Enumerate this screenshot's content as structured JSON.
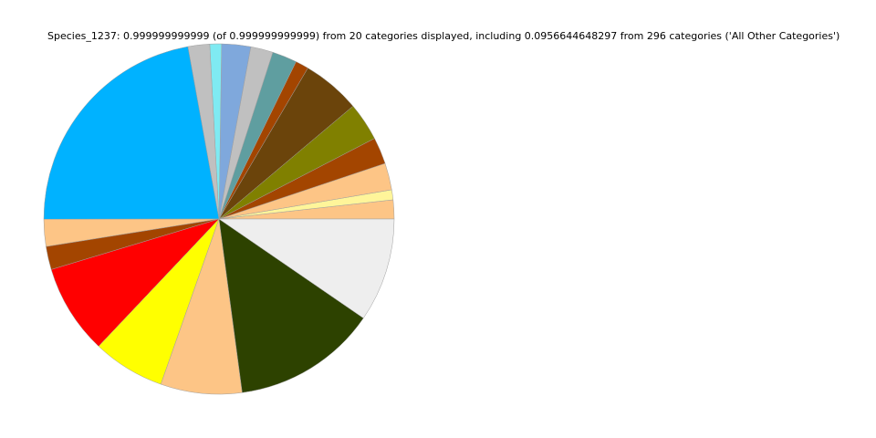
{
  "chart_data": {
    "type": "pie",
    "title": "Species_1237: 0.999999999999 (of 0.999999999999) from 20 categories displayed, including 0.0956644648297 from 296 categories ('All Other Categories')",
    "start_angle_deg": 0,
    "direction": "counterclockwise",
    "legend": "none",
    "slices": [
      {
        "value": 0.0175,
        "color": "#fdc586"
      },
      {
        "value": 0.0092,
        "color": "#fff59a"
      },
      {
        "value": 0.0247,
        "color": "#fdc586"
      },
      {
        "value": 0.0247,
        "color": "#a34500"
      },
      {
        "value": 0.0353,
        "color": "#808000"
      },
      {
        "value": 0.0539,
        "color": "#6b440b"
      },
      {
        "value": 0.0122,
        "color": "#a34500"
      },
      {
        "value": 0.0228,
        "color": "#5f9ea0"
      },
      {
        "value": 0.0206,
        "color": "#c0c0c0"
      },
      {
        "value": 0.0267,
        "color": "#7fa8dc"
      },
      {
        "value": 0.0108,
        "color": "#7feaf2"
      },
      {
        "value": 0.02,
        "color": "#c0c0c0"
      },
      {
        "value": 0.2217,
        "color": "#00b2ff"
      },
      {
        "value": 0.025,
        "color": "#fdc586"
      },
      {
        "value": 0.0214,
        "color": "#a34500"
      },
      {
        "value": 0.0828,
        "color": "#ff0000"
      },
      {
        "value": 0.0667,
        "color": "#ffff00"
      },
      {
        "value": 0.075,
        "color": "#fdc586"
      },
      {
        "value": 0.1331,
        "color": "#2d4200"
      },
      {
        "value": 0.0957,
        "color": "#eeeeee",
        "name": "All Other Categories"
      }
    ]
  }
}
